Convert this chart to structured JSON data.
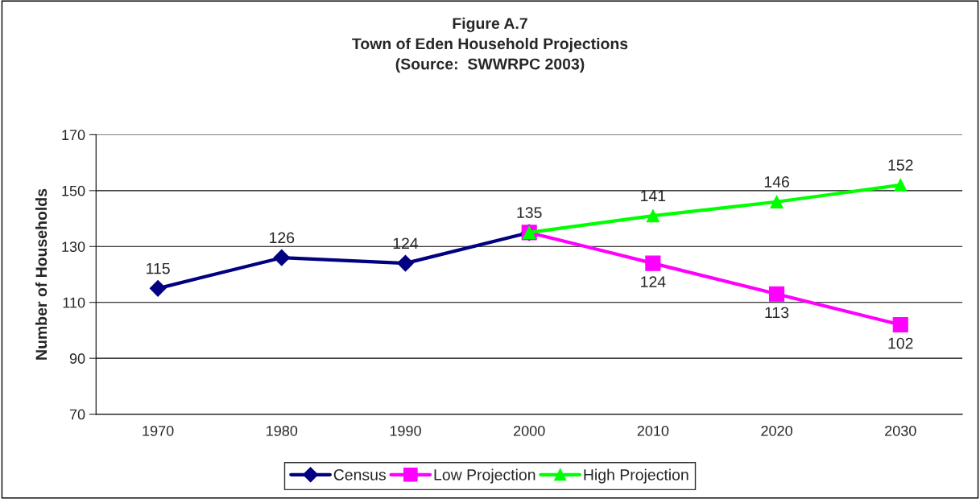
{
  "chart_data": {
    "type": "line",
    "title": "Figure A.7\nTown of Eden Household Projections\n(Source:  SWWRPC 2003)",
    "ylabel": "Number of Households",
    "categories": [
      "1970",
      "1980",
      "1990",
      "2000",
      "2010",
      "2020",
      "2030"
    ],
    "series": [
      {
        "name": "Census",
        "color": "#000080",
        "marker": "diamond",
        "values": [
          115,
          126,
          124,
          135,
          null,
          null,
          null
        ],
        "value_labels": [
          "115",
          "126",
          "124",
          "135",
          null,
          null,
          null
        ]
      },
      {
        "name": "Low Projection",
        "color": "#ff00ff",
        "marker": "square",
        "values": [
          null,
          null,
          null,
          135,
          124,
          113,
          102
        ],
        "value_labels": [
          null,
          null,
          null,
          null,
          "124",
          "113",
          "102"
        ]
      },
      {
        "name": "High Projection",
        "color": "#00ff00",
        "marker": "triangle",
        "values": [
          null,
          null,
          null,
          135,
          141,
          146,
          152
        ],
        "value_labels": [
          null,
          null,
          null,
          null,
          "141",
          "146",
          "152"
        ]
      }
    ],
    "ylim": [
      70,
      170
    ],
    "yticks": [
      70,
      90,
      110,
      130,
      150,
      170
    ],
    "grid": "y",
    "legend": "bottom",
    "line_style": "solid"
  }
}
